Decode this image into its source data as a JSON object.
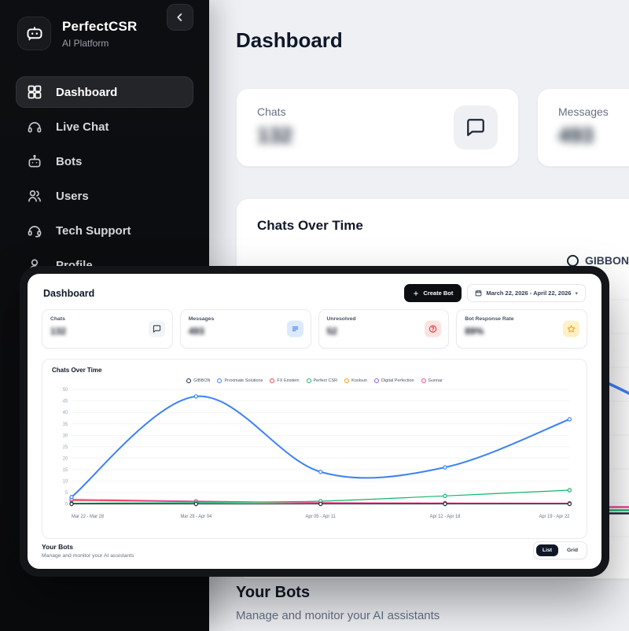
{
  "sidebar": {
    "brand_name": "PerfectCSR",
    "brand_tagline": "AI Platform",
    "items": [
      {
        "label": "Dashboard",
        "icon": "grid",
        "active": true
      },
      {
        "label": "Live Chat",
        "icon": "headphones",
        "active": false
      },
      {
        "label": "Bots",
        "icon": "robot",
        "active": false
      },
      {
        "label": "Users",
        "icon": "users",
        "active": false
      },
      {
        "label": "Tech Support",
        "icon": "headset",
        "active": false
      },
      {
        "label": "Profile",
        "icon": "user",
        "active": false
      }
    ]
  },
  "page": {
    "title": "Dashboard",
    "stats": [
      {
        "label": "Chats",
        "value": "132",
        "icon": "chat",
        "icon_bg": "#eef0f3",
        "icon_color": "#1d2939"
      },
      {
        "label": "Messages",
        "value": "493",
        "icon": "message-lines",
        "icon_bg": "#dbeafe",
        "icon_color": "#2563eb"
      }
    ],
    "chart_title": "Chats Over Time",
    "legend_preview": [
      {
        "label": "GIBBON",
        "color": "#1d2939"
      },
      {
        "label": "",
        "color": "#3b82f6"
      }
    ],
    "your_bots_title": "Your Bots",
    "your_bots_subtitle": "Manage and monitor your AI assistants"
  },
  "overlay": {
    "title": "Dashboard",
    "create_bot_label": "Create Bot",
    "date_range": "March 22, 2026 - April 22, 2026",
    "stats": [
      {
        "label": "Chats",
        "value": "132",
        "icon": "chat",
        "icon_bg": "#f2f4f7",
        "icon_color": "#1d2939"
      },
      {
        "label": "Messages",
        "value": "493",
        "icon": "message-lines",
        "icon_bg": "#dbeafe",
        "icon_color": "#2563eb"
      },
      {
        "label": "Unresolved",
        "value": "52",
        "icon": "help-circle",
        "icon_bg": "#fee2e2",
        "icon_color": "#dc2626"
      },
      {
        "label": "Bot Response Rate",
        "value": "89%",
        "icon": "star",
        "icon_bg": "#fef0c7",
        "icon_color": "#f59e0b"
      }
    ],
    "footer_title": "Your Bots",
    "footer_subtitle": "Manage and monitor your AI assistants",
    "view_list_label": "List",
    "view_grid_label": "Grid"
  },
  "chart_data": {
    "type": "line",
    "title": "Chats Over Time",
    "categories": [
      "Mar 22 - Mar 28",
      "Mar 29 - Apr 04",
      "Apr 05 - Apr 11",
      "Apr 12 - Apr 18",
      "Apr 19 - Apr 22"
    ],
    "series": [
      {
        "name": "GIBBON",
        "color": "#1d2939",
        "values": [
          0,
          0,
          0,
          0,
          0
        ],
        "z": 10
      },
      {
        "name": "Proximate Solutions",
        "color": "#3b82f6",
        "values": [
          3,
          47,
          14,
          16,
          37
        ],
        "z": 9,
        "width": 2
      },
      {
        "name": "FX Einstein",
        "color": "#ef4444",
        "values": [
          1.5,
          1,
          0.5,
          0.3,
          0.2
        ],
        "z": 6
      },
      {
        "name": "Perfect CSR",
        "color": "#12b76a",
        "values": [
          0.3,
          0.6,
          1.2,
          3.5,
          6
        ],
        "z": 8
      },
      {
        "name": "Koolsun",
        "color": "#f59e0b",
        "values": [
          0,
          0,
          0,
          0,
          0
        ],
        "z": 2
      },
      {
        "name": "Digital Perfection",
        "color": "#8b5cf6",
        "values": [
          0,
          0,
          0,
          0,
          0
        ],
        "z": 1
      },
      {
        "name": "Gunnar",
        "color": "#ec4899",
        "values": [
          2,
          1.2,
          0.6,
          0.4,
          0.3
        ],
        "z": 7
      }
    ],
    "ylim": [
      0,
      50
    ],
    "yticks": [
      0,
      5,
      10,
      15,
      20,
      25,
      30,
      35,
      40,
      45,
      50
    ],
    "grid": true,
    "legend_position": "top"
  }
}
